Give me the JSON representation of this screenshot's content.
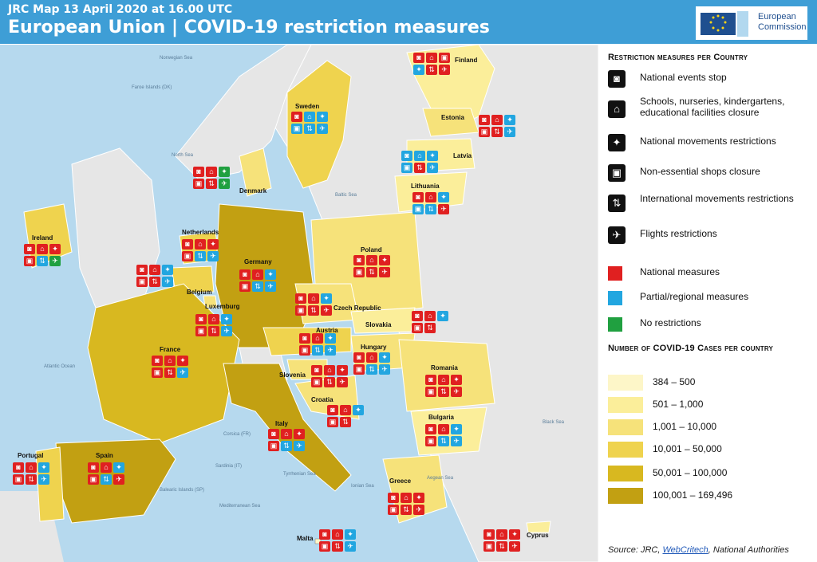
{
  "header": {
    "subtitle": "JRC Map 13 April 2020 at 16.00 UTC",
    "title": "European Union | COVID-19 restriction measures",
    "logo_text": [
      "European",
      "Commission"
    ]
  },
  "legend": {
    "measures_title": "Restriction measures per Country",
    "measures": [
      {
        "icon": "national-events-stop-icon",
        "label": "National events stop"
      },
      {
        "icon": "school-closure-icon",
        "label": "Schools, nurseries, kindergartens, educational facilities closure"
      },
      {
        "icon": "walking-person-icon",
        "label": "National movements restrictions"
      },
      {
        "icon": "shop-closure-icon",
        "label": "Non-essential shops closure"
      },
      {
        "icon": "international-arrows-icon",
        "label": "International movements restrictions"
      },
      {
        "icon": "airplane-icon",
        "label": "Flights restrictions"
      }
    ],
    "scope_colors": [
      {
        "color": "#e02020",
        "label": "National measures"
      },
      {
        "color": "#22a6e0",
        "label": "Partial/regional measures"
      },
      {
        "color": "#20a040",
        "label": "No restrictions"
      }
    ],
    "cases_title": "Number of COVID-19 Cases per country",
    "cases_bins": [
      {
        "color": "#fdf6c8",
        "label": "384 – 500"
      },
      {
        "color": "#fbee9a",
        "label": "501 – 1,000"
      },
      {
        "color": "#f6e27a",
        "label": "1,001 – 10,000"
      },
      {
        "color": "#efd34e",
        "label": "10,001 – 50,000"
      },
      {
        "color": "#d8b820",
        "label": "50,001 – 100,000"
      },
      {
        "color": "#c2a012",
        "label": "100,001 – 169,496"
      }
    ],
    "source_prefix": "Source: JRC, ",
    "source_link": "WebCritech",
    "source_suffix": ", National Authorities"
  },
  "map": {
    "countries": [
      {
        "name": "Finland",
        "bin": "#fbee9a"
      },
      {
        "name": "Sweden",
        "bin": "#efd34e"
      },
      {
        "name": "Estonia",
        "bin": "#f6e27a"
      },
      {
        "name": "Latvia",
        "bin": "#fbee9a"
      },
      {
        "name": "Lithuania",
        "bin": "#fbee9a"
      },
      {
        "name": "Denmark",
        "bin": "#f6e27a"
      },
      {
        "name": "Ireland",
        "bin": "#efd34e"
      },
      {
        "name": "Netherlands",
        "bin": "#efd34e"
      },
      {
        "name": "Belgium",
        "bin": "#efd34e"
      },
      {
        "name": "Luxemburg",
        "bin": "#f6e27a"
      },
      {
        "name": "Germany",
        "bin": "#c2a012"
      },
      {
        "name": "Poland",
        "bin": "#f6e27a"
      },
      {
        "name": "Czech Republic",
        "bin": "#f6e27a"
      },
      {
        "name": "Slovakia",
        "bin": "#fbee9a"
      },
      {
        "name": "Austria",
        "bin": "#efd34e"
      },
      {
        "name": "Hungary",
        "bin": "#f6e27a"
      },
      {
        "name": "Slovenia",
        "bin": "#f6e27a"
      },
      {
        "name": "Croatia",
        "bin": "#f6e27a"
      },
      {
        "name": "Romania",
        "bin": "#f6e27a"
      },
      {
        "name": "Bulgaria",
        "bin": "#fbee9a"
      },
      {
        "name": "France",
        "bin": "#d8b820"
      },
      {
        "name": "Italy",
        "bin": "#c2a012"
      },
      {
        "name": "Spain",
        "bin": "#c2a012"
      },
      {
        "name": "Portugal",
        "bin": "#efd34e"
      },
      {
        "name": "Greece",
        "bin": "#f6e27a"
      },
      {
        "name": "Malta",
        "bin": "#fdf6c8"
      },
      {
        "name": "Cyprus",
        "bin": "#fbee9a"
      }
    ],
    "seas": [
      "Norwegian Sea",
      "Faroe Islands (DK)",
      "North Sea",
      "Baltic Sea",
      "Atlantic Ocean",
      "Corsica (FR)",
      "Sardinia (IT)",
      "Tyrrhenian Sea",
      "Balearic Islands (SP)",
      "Mediterranean Sea",
      "Ionian Sea",
      "Black Sea",
      "Aegean Sea"
    ]
  }
}
